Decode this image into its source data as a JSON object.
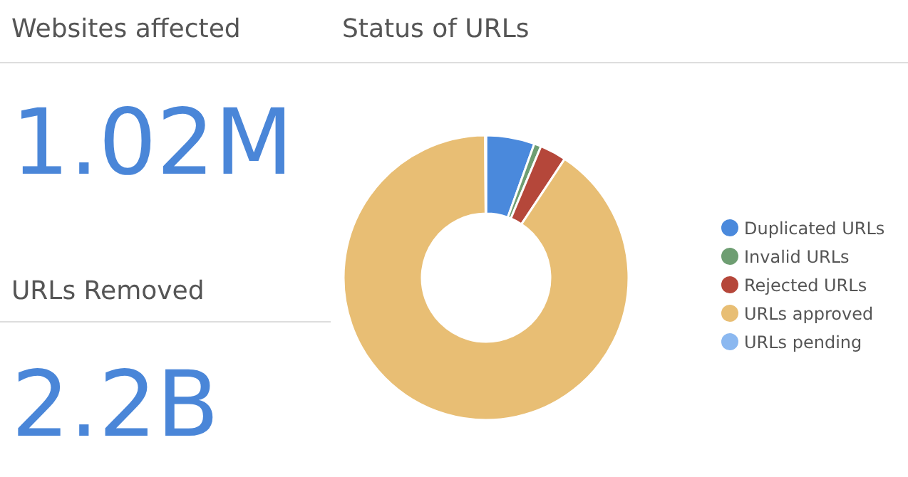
{
  "chart_data": [
    {
      "type": "other",
      "title": "Websites affected",
      "annotations": [
        "1.02M"
      ]
    },
    {
      "type": "other",
      "title": "URLs Removed",
      "annotations": [
        "2.2B"
      ]
    },
    {
      "type": "donut",
      "title": "Status of URLs",
      "categories": [
        "Duplicated URLs",
        "Invalid URLs",
        "Rejected URLs",
        "URLs approved",
        "URLs pending"
      ],
      "values": [
        5.5,
        0.8,
        3.0,
        90.6,
        0.1
      ],
      "colors": [
        "#4a89dc",
        "#6e9e72",
        "#b5473a",
        "#e8be74",
        "#8bb8f0"
      ],
      "legend": "right"
    }
  ]
}
